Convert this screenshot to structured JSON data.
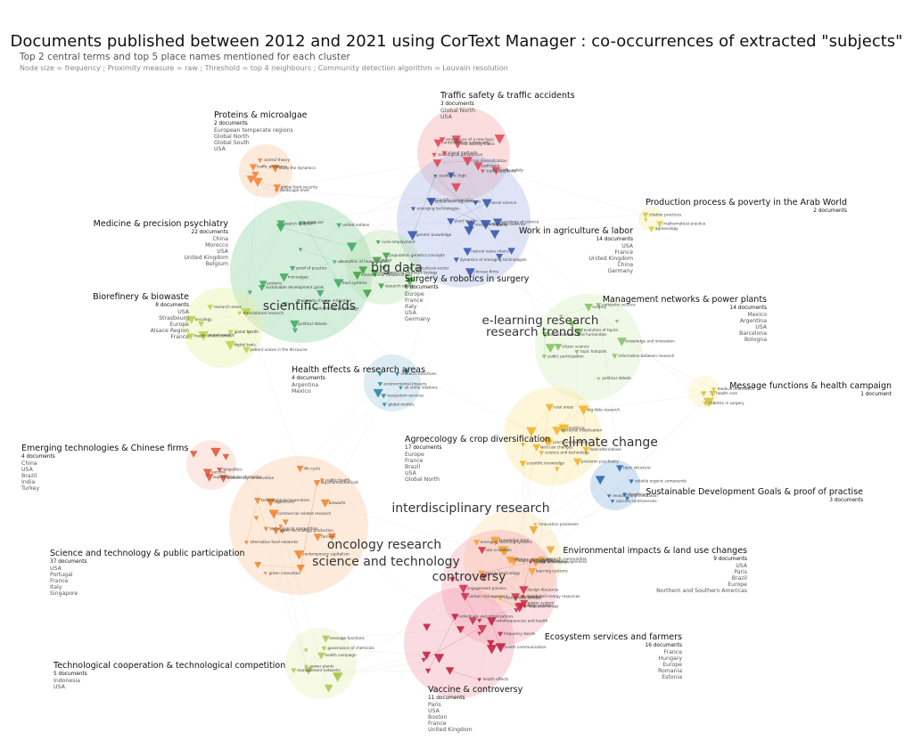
{
  "title": "Documents published between 2012 and 2021 using CorText Manager : co-occurrences of extracted \"subjects\"",
  "subtitle": "Top 2 central terms and top 5 place names mentioned for each cluster",
  "legend": "Node size = frequency ; Proximity measure = raw ; Threshold = top 4 neighbours ; Community detection algorithm = Louvain resolution",
  "clusters": [
    {
      "id": "traffic",
      "name": "Traffic safety & traffic accidents",
      "docs": "3 documents",
      "places": [
        "Global North",
        "USA"
      ],
      "color": "#f4a6a6"
    },
    {
      "id": "proteins",
      "name": "Proteins & microalgae",
      "docs": "2 documents",
      "places": [
        "European temperate regions",
        "Global North",
        "Global South",
        "USA"
      ],
      "color": "#fbc9a0"
    },
    {
      "id": "arab",
      "name": "Production process & poverty in the Arab World",
      "docs": "2 documents",
      "places": [],
      "color": "#f5f0a8"
    },
    {
      "id": "medicine",
      "name": "Medicine & precision psychiatry",
      "docs": "22 documents",
      "places": [
        "China",
        "Morocco",
        "USA",
        "United Kingdom",
        "Belgium"
      ],
      "color": "#8fd1a3"
    },
    {
      "id": "agriculture",
      "name": "Work in agriculture & labor",
      "docs": "14 documents",
      "places": [
        "USA",
        "France",
        "United Kingdom",
        "China",
        "Germany"
      ],
      "color": "#a9b8e6"
    },
    {
      "id": "surgery",
      "name": "Surgery & robotics in surgery",
      "docs": "6 documents",
      "places": [
        "Europe",
        "France",
        "Italy",
        "USA",
        "Germany"
      ],
      "color": "#b7e3b0"
    },
    {
      "id": "biorefinery",
      "name": "Biorefinery & biowaste",
      "docs": "8 documents",
      "places": [
        "USA",
        "Strasbourg",
        "Europe",
        "Alsace Region",
        "France"
      ],
      "color": "#e6f2a0"
    },
    {
      "id": "management",
      "name": "Management networks & power plants",
      "docs": "14 documents",
      "places": [
        "Mexico",
        "Argentina",
        "USA",
        "Barcelona",
        "Bologna"
      ],
      "color": "#d8f0c0"
    },
    {
      "id": "message",
      "name": "Message functions & health campaign",
      "docs": "1 document",
      "places": [],
      "color": "#f7f3b0"
    },
    {
      "id": "health",
      "name": "Health effects & research areas",
      "docs": "4 documents",
      "places": [
        "Argentina",
        "Mexico"
      ],
      "color": "#a9cde3"
    },
    {
      "id": "agroecology",
      "name": "Agroecology & crop diversification",
      "docs": "17 documents",
      "places": [
        "Europe",
        "France",
        "Brazil",
        "USA",
        "Global North"
      ],
      "color": "#fde79a"
    },
    {
      "id": "emerging",
      "name": "Emerging technologies & Chinese firms",
      "docs": "4 documents",
      "places": [
        "China",
        "USA",
        "Brazil",
        "India",
        "Turkey"
      ],
      "color": "#f8c4b8"
    },
    {
      "id": "sdg",
      "name": "Sustainable Development Goals & proof of practise",
      "docs": "3 documents",
      "places": [],
      "color": "#8fb8e0"
    },
    {
      "id": "science",
      "name": "Science and technology & public participation",
      "docs": "37 documents",
      "places": [
        "USA",
        "Portugal",
        "France",
        "Italy",
        "Singapore"
      ],
      "color": "#fcc8a0"
    },
    {
      "id": "environment",
      "name": "Environmental impacts & land use changes",
      "docs": "9 documents",
      "places": [
        "USA",
        "Paris",
        "Brazil",
        "Europe",
        "Northern and Southern Americas"
      ],
      "color": "#fbe0a8"
    },
    {
      "id": "ecosystem",
      "name": "Ecosystem services and farmers",
      "docs": "16 documents",
      "places": [
        "France",
        "Hungary",
        "Europe",
        "Romania",
        "Estonia"
      ],
      "color": "#f4a8b8"
    },
    {
      "id": "techcoop",
      "name": "Technological cooperation & technological competition",
      "docs": "5 documents",
      "places": [
        "Indonesia",
        "USA"
      ],
      "color": "#e8f2b8"
    },
    {
      "id": "vaccine",
      "name": "Vaccine & controversy",
      "docs": "11 documents",
      "places": [
        "Paris",
        "USA",
        "Boston",
        "France",
        "United Kingdom"
      ],
      "color": "#f2a0b0"
    }
  ],
  "big_terms": [
    "big data",
    "scientific fields",
    "e-learning research",
    "research trends",
    "climate change",
    "interdisciplinary research",
    "oncology research",
    "science and technology",
    "controversy"
  ],
  "small_terms": [
    "sociological perspective",
    "traffic safety",
    "risk society thesis",
    "control theory community",
    "traffic accidents",
    "control theory",
    "traffic problems",
    "mathematical practice",
    "citation practices",
    "microalgae",
    "absorption of heavy metals",
    "proteins",
    "political debate",
    "pulses",
    "evolutionary psychology",
    "sociology of science",
    "genetic knowledge",
    "moral science",
    "academic logic",
    "research domains",
    "plant health",
    "natural value chains",
    "labour",
    "agricultural sector",
    "rural employment",
    "global health",
    "animal models",
    "patient voices in the discourse",
    "health smart homes",
    "computer science",
    "topic hotspots",
    "surgery",
    "information between research",
    "evolution of topics",
    "medical informatics",
    "robotics in surgery",
    "research directions",
    "uk china relations",
    "precision medicine",
    "medicine",
    "precision psychiatry",
    "science and technology",
    "big data research",
    "biopolitics",
    "supramolecular chemistry",
    "topic structure",
    "volatile organic compounds",
    "biorefinery",
    "algorithms",
    "life cycle",
    "biowaste",
    "green innovation",
    "green technology production",
    "commercial related research",
    "research communities",
    "learning systems",
    "major research themes",
    "emerging teaching systems",
    "knowledge base",
    "star scientists",
    "distributed energy resources",
    "power system",
    "energy source",
    "carbon management",
    "power plants",
    "management networks",
    "message functions",
    "health campaign",
    "individuals and organizations",
    "health communication",
    "frequency bands",
    "radiofrequencies and health",
    "health effects",
    "pathogen",
    "emergence of a new topic",
    "mixed methods",
    "crop diversification",
    "study the dynamics",
    "landscape level",
    "global food security",
    "agroecology",
    "land use",
    "food systems",
    "sustainable development goals",
    "climate change mitigation",
    "united nations",
    "proof of practice",
    "search queries",
    "cooperation agreements",
    "scientific cooperation",
    "emerging countries",
    "chinese firms",
    "emerging technologies",
    "dynamics of emerging technologies",
    "population genetics concepts",
    "emergence of synthetic biology",
    "international collaborations",
    "research ethics",
    "digital tools",
    "oncology",
    "research areas",
    "translational research",
    "social sciences and humanities",
    "knowledge and innovation",
    "citizen science",
    "public participation",
    "political debate",
    "health care",
    "global models",
    "ecosystem services",
    "environmental impacts",
    "food alternatives",
    "land use changes",
    "territorial mobilisation",
    "rural areas",
    "scientific knowledge",
    "biodiversity conservation",
    "vaccine",
    "vaccine controversies",
    "research and innovation",
    "public health",
    "farmers",
    "alternative food networks",
    "contemporary capitalism",
    "big pharmaceuticals",
    "technological competition",
    "technological cooperation",
    "offshore wind energy",
    "energy technology",
    "innovation processes",
    "higher external openness",
    "institutional context",
    "design discourse",
    "engagement process",
    "risk society",
    "fake psychology",
    "health information",
    "governance of chemicals"
  ]
}
